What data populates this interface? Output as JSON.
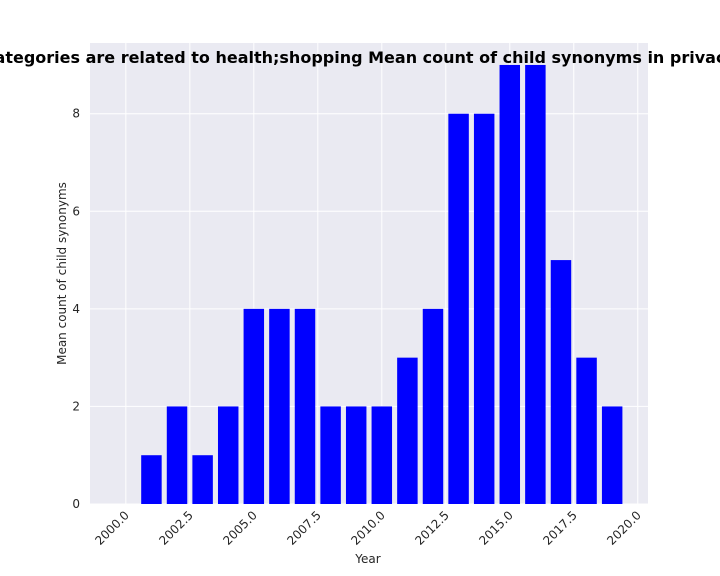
{
  "chart_data": {
    "type": "bar",
    "title": "Domain categories are related to health;shopping Mean count of child synonyms in privacy policies by year",
    "xlabel": "Year",
    "ylabel": "Mean count of child synonyms",
    "x": [
      2000,
      2001,
      2002,
      2003,
      2004,
      2005,
      2006,
      2007,
      2008,
      2009,
      2010,
      2011,
      2012,
      2013,
      2014,
      2015,
      2016,
      2017,
      2018,
      2019
    ],
    "values": [
      0,
      1,
      2,
      1,
      2,
      4,
      4,
      4,
      2,
      2,
      2,
      3,
      4,
      8,
      8,
      9,
      9,
      5,
      3,
      2
    ],
    "xlim": [
      1998.6,
      2020.4
    ],
    "ylim": [
      0,
      9.45
    ],
    "xticks": [
      "2000.0",
      "2002.5",
      "2005.0",
      "2007.5",
      "2010.0",
      "2012.5",
      "2015.0",
      "2017.5",
      "2020.0"
    ],
    "xtick_values": [
      2000,
      2002.5,
      2005,
      2007.5,
      2010,
      2012.5,
      2015,
      2017.5,
      2020
    ],
    "yticks": [
      "0",
      "2",
      "4",
      "6",
      "8"
    ],
    "ytick_values": [
      0,
      2,
      4,
      6,
      8
    ],
    "bar_color": "#0000ff",
    "plot_background": "#eaeaf2",
    "grid": true,
    "legend": "none"
  }
}
